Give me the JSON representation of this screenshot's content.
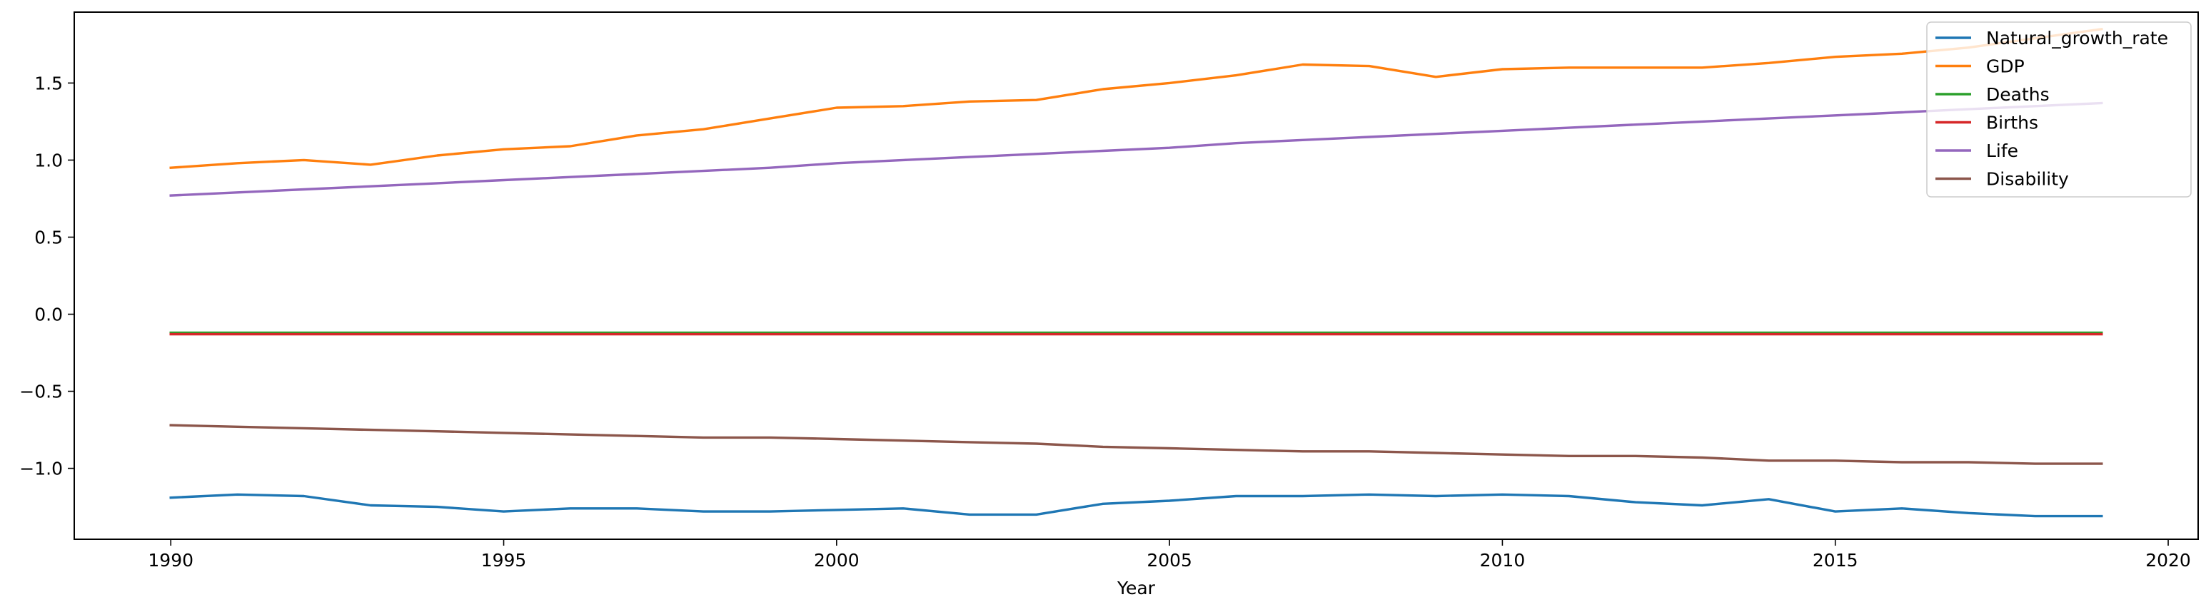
{
  "chart_data": {
    "type": "line",
    "title": "",
    "xlabel": "Year",
    "ylabel": "",
    "xlim": [
      1988.55,
      2020.45
    ],
    "ylim": [
      -1.46,
      1.96
    ],
    "x_ticks": [
      1990,
      1995,
      2000,
      2005,
      2010,
      2015,
      2020
    ],
    "y_ticks": [
      -1.0,
      -0.5,
      0.0,
      0.5,
      1.0,
      1.5
    ],
    "y_tick_labels": [
      "−1.0",
      "−0.5",
      "0.0",
      "0.5",
      "1.0",
      "1.5"
    ],
    "grid": false,
    "legend_position": "top-right",
    "x": [
      1990,
      1991,
      1992,
      1993,
      1994,
      1995,
      1996,
      1997,
      1998,
      1999,
      2000,
      2001,
      2002,
      2003,
      2004,
      2005,
      2006,
      2007,
      2008,
      2009,
      2010,
      2011,
      2012,
      2013,
      2014,
      2015,
      2016,
      2017,
      2018,
      2019
    ],
    "series": [
      {
        "name": "Natural_growth_rate",
        "color": "#1f77b4",
        "values": [
          -1.19,
          -1.17,
          -1.18,
          -1.24,
          -1.25,
          -1.28,
          -1.26,
          -1.26,
          -1.28,
          -1.28,
          -1.27,
          -1.26,
          -1.3,
          -1.3,
          -1.23,
          -1.21,
          -1.18,
          -1.18,
          -1.17,
          -1.18,
          -1.17,
          -1.18,
          -1.22,
          -1.24,
          -1.2,
          -1.28,
          -1.26,
          -1.29,
          -1.31,
          -1.31
        ]
      },
      {
        "name": "GDP",
        "color": "#ff7f0e",
        "values": [
          0.95,
          0.98,
          1.0,
          0.97,
          1.03,
          1.07,
          1.09,
          1.16,
          1.2,
          1.27,
          1.34,
          1.35,
          1.38,
          1.39,
          1.46,
          1.5,
          1.55,
          1.62,
          1.61,
          1.54,
          1.59,
          1.6,
          1.6,
          1.6,
          1.63,
          1.67,
          1.69,
          1.73,
          1.79,
          1.85
        ]
      },
      {
        "name": "Deaths",
        "color": "#2ca02c",
        "values": [
          -0.12,
          -0.12,
          -0.12,
          -0.12,
          -0.12,
          -0.12,
          -0.12,
          -0.12,
          -0.12,
          -0.12,
          -0.12,
          -0.12,
          -0.12,
          -0.12,
          -0.12,
          -0.12,
          -0.12,
          -0.12,
          -0.12,
          -0.12,
          -0.12,
          -0.12,
          -0.12,
          -0.12,
          -0.12,
          -0.12,
          -0.12,
          -0.12,
          -0.12,
          -0.12
        ]
      },
      {
        "name": "Births",
        "color": "#d62728",
        "values": [
          -0.13,
          -0.13,
          -0.13,
          -0.13,
          -0.13,
          -0.13,
          -0.13,
          -0.13,
          -0.13,
          -0.13,
          -0.13,
          -0.13,
          -0.13,
          -0.13,
          -0.13,
          -0.13,
          -0.13,
          -0.13,
          -0.13,
          -0.13,
          -0.13,
          -0.13,
          -0.13,
          -0.13,
          -0.13,
          -0.13,
          -0.13,
          -0.13,
          -0.13,
          -0.13
        ]
      },
      {
        "name": "Life",
        "color": "#9467bd",
        "values": [
          0.77,
          0.79,
          0.81,
          0.83,
          0.85,
          0.87,
          0.89,
          0.91,
          0.93,
          0.95,
          0.98,
          1.0,
          1.02,
          1.04,
          1.06,
          1.08,
          1.11,
          1.13,
          1.15,
          1.17,
          1.19,
          1.21,
          1.23,
          1.25,
          1.27,
          1.29,
          1.31,
          1.33,
          1.35,
          1.37
        ]
      },
      {
        "name": "Disability",
        "color": "#8c564b",
        "values": [
          -0.72,
          -0.73,
          -0.74,
          -0.75,
          -0.76,
          -0.77,
          -0.78,
          -0.79,
          -0.8,
          -0.8,
          -0.81,
          -0.82,
          -0.83,
          -0.84,
          -0.86,
          -0.87,
          -0.88,
          -0.89,
          -0.89,
          -0.9,
          -0.91,
          -0.92,
          -0.92,
          -0.93,
          -0.95,
          -0.95,
          -0.96,
          -0.96,
          -0.97,
          -0.97
        ]
      }
    ]
  }
}
